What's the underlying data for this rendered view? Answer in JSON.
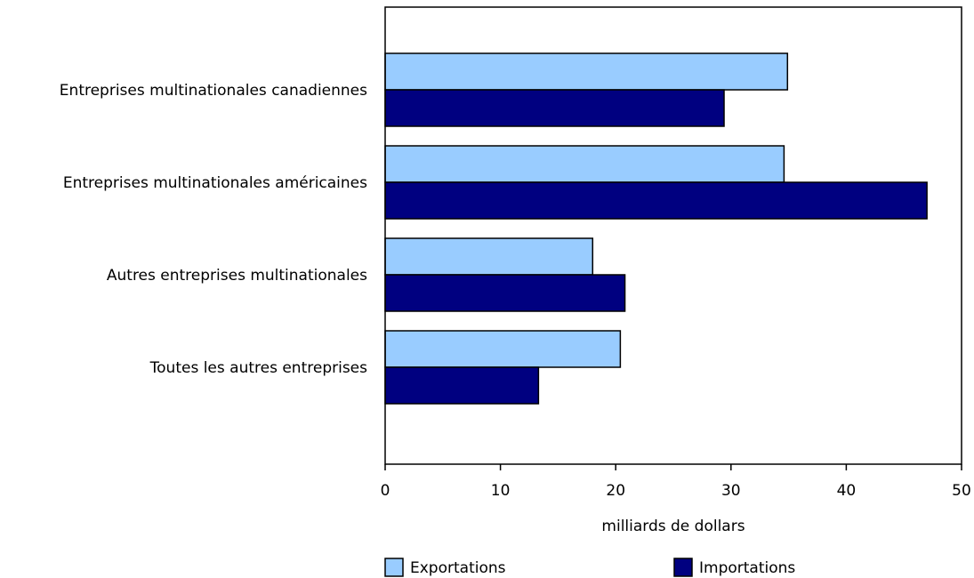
{
  "chart_data": {
    "type": "bar",
    "orientation": "horizontal",
    "categories": [
      "Entreprises multinationales canadiennes",
      "Entreprises multinationales américaines",
      "Autres entreprises multinationales",
      "Toutes les autres entreprises"
    ],
    "series": [
      {
        "name": "Exportations",
        "color": "#99ccff",
        "values": [
          34.9,
          34.6,
          18.0,
          20.4
        ]
      },
      {
        "name": "Importations",
        "color": "#000080",
        "values": [
          29.4,
          47.0,
          20.8,
          13.3
        ]
      }
    ],
    "xlabel": "milliards de dollars",
    "ylabel": "",
    "xlim": [
      0,
      50
    ],
    "x_ticks": [
      "0",
      "10",
      "20",
      "30",
      "40",
      "50"
    ],
    "grid": false,
    "legend_position": "bottom"
  }
}
